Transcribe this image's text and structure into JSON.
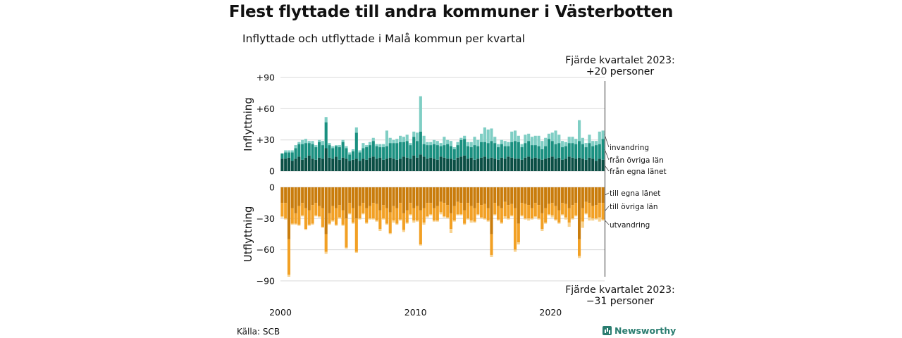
{
  "header": {
    "title": "Flest flyttade till andra kommuner i Västerbotten",
    "subtitle": "Inflyttade och utflyttade i Malå kommun per kvartal"
  },
  "annotations": {
    "top_line1": "Fjärde kvartalet 2023:",
    "top_line2": "+20 personer",
    "bottom_line1": "Fjärde kvartalet 2023:",
    "bottom_line2": "−31 personer"
  },
  "footer": {
    "source": "Källa: SCB",
    "brand": "Newsworthy"
  },
  "chart_data": {
    "type": "bar",
    "layout": "diverging-stacked",
    "x_start": "2000 Q1",
    "x_end": "2023 Q4",
    "x_ticks": [
      "2000",
      "2010",
      "2020"
    ],
    "panels": [
      {
        "ylabel": "Inflyttning",
        "ylim": [
          0,
          90
        ],
        "yticks": [
          "+90",
          "+60",
          "+30",
          "0"
        ],
        "series": [
          {
            "name": "från egna länet",
            "color": "#0b4f45",
            "values": [
              12,
              12,
              13,
              10,
              12,
              14,
              11,
              13,
              15,
              12,
              11,
              13,
              12,
              22,
              13,
              12,
              14,
              11,
              13,
              12,
              10,
              11,
              12,
              10,
              12,
              11,
              13,
              14,
              12,
              13,
              11,
              12,
              13,
              12,
              11,
              12,
              14,
              13,
              12,
              15,
              13,
              16,
              14,
              12,
              13,
              12,
              11,
              14,
              13,
              12,
              12,
              11,
              13,
              14,
              15,
              12,
              13,
              11,
              12,
              13,
              14,
              12,
              13,
              12,
              11,
              13,
              12,
              14,
              13,
              12,
              12,
              11,
              13,
              14,
              12,
              13,
              12,
              11,
              12,
              13,
              14,
              12,
              13,
              11,
              12,
              14,
              13,
              12,
              13,
              12,
              11,
              13,
              12,
              10,
              12,
              11
            ]
          },
          {
            "name": "från övriga län",
            "color": "#1a9080",
            "values": [
              5,
              6,
              5,
              8,
              10,
              12,
              15,
              14,
              12,
              14,
              12,
              15,
              13,
              25,
              12,
              10,
              10,
              12,
              15,
              10,
              6,
              8,
              25,
              8,
              10,
              12,
              12,
              15,
              12,
              10,
              12,
              12,
              14,
              15,
              16,
              16,
              14,
              16,
              13,
              18,
              16,
              22,
              12,
              13,
              12,
              14,
              14,
              10,
              12,
              14,
              12,
              10,
              12,
              16,
              16,
              12,
              10,
              14,
              12,
              15,
              14,
              15,
              16,
              15,
              12,
              13,
              12,
              10,
              15,
              17,
              16,
              12,
              14,
              15,
              13,
              12,
              12,
              10,
              12,
              18,
              15,
              14,
              14,
              12,
              12,
              13,
              14,
              14,
              16,
              14,
              12,
              14,
              12,
              15,
              14,
              20
            ]
          },
          {
            "name": "invandring",
            "color": "#7fcec4",
            "values": [
              0,
              2,
              2,
              2,
              3,
              2,
              4,
              4,
              2,
              3,
              2,
              2,
              4,
              5,
              2,
              2,
              1,
              2,
              2,
              2,
              2,
              2,
              5,
              2,
              5,
              2,
              3,
              3,
              2,
              3,
              3,
              15,
              5,
              3,
              4,
              6,
              5,
              6,
              2,
              5,
              8,
              34,
              8,
              3,
              3,
              4,
              4,
              3,
              8,
              4,
              5,
              2,
              3,
              2,
              3,
              4,
              5,
              8,
              6,
              8,
              14,
              13,
              12,
              6,
              3,
              4,
              5,
              4,
              10,
              10,
              6,
              3,
              8,
              7,
              8,
              9,
              10,
              8,
              8,
              5,
              8,
              13,
              8,
              6,
              4,
              6,
              6,
              5,
              20,
              6,
              4,
              8,
              5,
              4,
              12,
              8
            ]
          }
        ]
      },
      {
        "ylabel": "Utflyttning",
        "ylim": [
          -90,
          0
        ],
        "yticks": [
          "0",
          "−30",
          "−60",
          "−90"
        ],
        "series": [
          {
            "name": "till egna länet",
            "color": "#c97c0c",
            "values": [
              -15,
              -15,
              -50,
              -20,
              -25,
              -18,
              -15,
              -20,
              -22,
              -17,
              -15,
              -18,
              -20,
              -45,
              -25,
              -18,
              -20,
              -17,
              -22,
              -30,
              -15,
              -20,
              -30,
              -18,
              -15,
              -20,
              -18,
              -15,
              -16,
              -22,
              -17,
              -20,
              -24,
              -18,
              -20,
              -15,
              -25,
              -22,
              -15,
              -20,
              -18,
              -22,
              -20,
              -15,
              -15,
              -20,
              -18,
              -14,
              -15,
              -17,
              -25,
              -18,
              -14,
              -15,
              -22,
              -15,
              -18,
              -20,
              -15,
              -17,
              -16,
              -20,
              -45,
              -15,
              -18,
              -20,
              -14,
              -17,
              -16,
              -20,
              -35,
              -15,
              -16,
              -17,
              -20,
              -15,
              -17,
              -25,
              -20,
              -16,
              -15,
              -18,
              -22,
              -15,
              -16,
              -20,
              -17,
              -15,
              -50,
              -20,
              -14,
              -15,
              -18,
              -17,
              -15,
              -15
            ]
          },
          {
            "name": "till övriga län",
            "color": "#f2a024",
            "values": [
              -13,
              -15,
              -34,
              -15,
              -10,
              -18,
              -12,
              -20,
              -14,
              -18,
              -12,
              -10,
              -18,
              -17,
              -10,
              -14,
              -16,
              -12,
              -14,
              -28,
              -10,
              -14,
              -32,
              -12,
              -10,
              -14,
              -12,
              -15,
              -16,
              -18,
              -13,
              -15,
              -20,
              -14,
              -15,
              -16,
              -16,
              -12,
              -11,
              -12,
              -14,
              -33,
              -14,
              -13,
              -11,
              -12,
              -14,
              -10,
              -13,
              -12,
              -15,
              -14,
              -12,
              -11,
              -13,
              -15,
              -14,
              -13,
              -11,
              -12,
              -14,
              -12,
              -20,
              -11,
              -13,
              -14,
              -14,
              -13,
              -11,
              -40,
              -18,
              -12,
              -14,
              -13,
              -10,
              -13,
              -13,
              -15,
              -14,
              -10,
              -12,
              -13,
              -12,
              -11,
              -13,
              -14,
              -13,
              -12,
              -16,
              -13,
              -11,
              -14,
              -12,
              -13,
              -14,
              -16
            ]
          },
          {
            "name": "utvandring",
            "color": "#f8d28f",
            "values": [
              -1,
              -1,
              -2,
              -1,
              -1,
              -1,
              -1,
              -1,
              -1,
              -1,
              -1,
              -1,
              -1,
              -2,
              -1,
              -1,
              -1,
              -1,
              -1,
              -1,
              -1,
              -1,
              -1,
              -1,
              -1,
              -1,
              -1,
              -1,
              -1,
              -2,
              -1,
              -1,
              -1,
              -2,
              -1,
              -1,
              -2,
              -1,
              -1,
              -2,
              -1,
              -1,
              -2,
              -1,
              -1,
              -1,
              -1,
              -2,
              -1,
              -1,
              -4,
              -1,
              -1,
              -1,
              -1,
              -1,
              -2,
              -1,
              -1,
              -1,
              -1,
              -1,
              -2,
              -1,
              -1,
              -1,
              -2,
              -1,
              -1,
              -2,
              -2,
              -1,
              -1,
              -2,
              -1,
              -1,
              -1,
              -2,
              -1,
              -1,
              -2,
              -1,
              -1,
              -1,
              -2,
              -4,
              -1,
              -1,
              -2,
              -6,
              -1,
              -3,
              -2,
              -1,
              -4,
              -1
            ]
          }
        ]
      }
    ]
  }
}
